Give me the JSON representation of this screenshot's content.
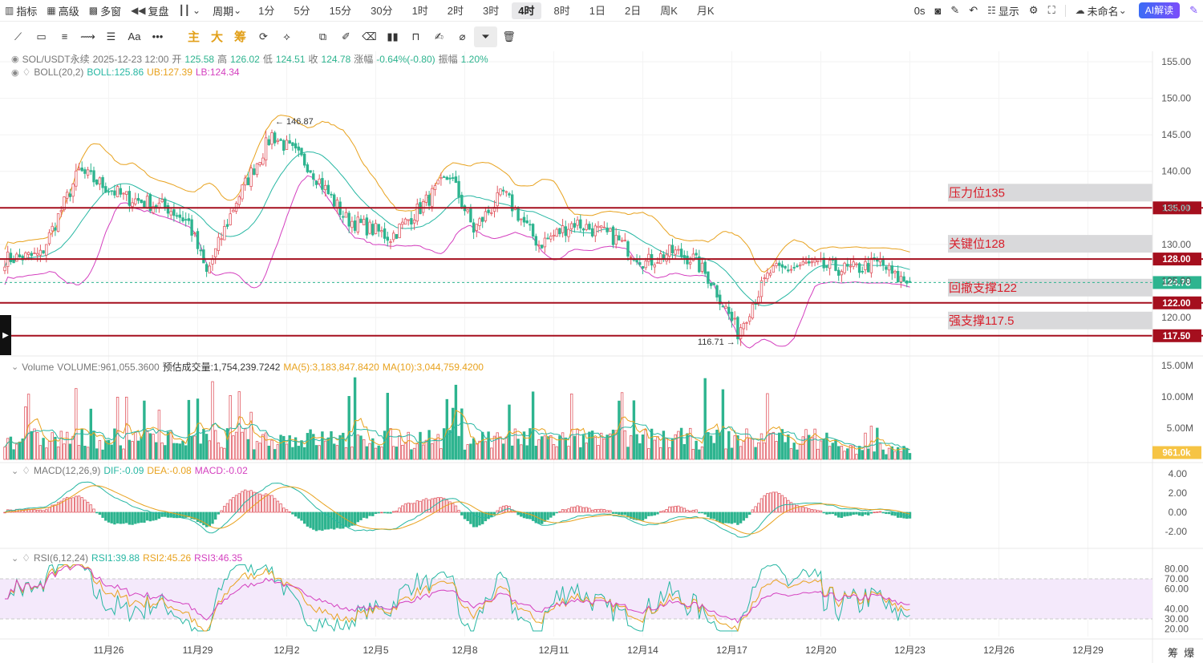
{
  "toolbar": {
    "indicators": "指标",
    "advanced": "高级",
    "multi_window": "多窗",
    "replay": "复盘",
    "period_label": "周期",
    "periods": [
      "1分",
      "5分",
      "15分",
      "30分",
      "1时",
      "2时",
      "3时",
      "4时",
      "8时",
      "1日",
      "2日",
      "周K",
      "月K"
    ],
    "active_period": "4时",
    "countdown": "0s",
    "display": "显示",
    "unnamed": "未命名",
    "ai_button": "AI解读"
  },
  "drawing_tools": {
    "zh_buttons": [
      "主",
      "大",
      "筹"
    ]
  },
  "main_legend": {
    "symbol": "SOL/USDT永续",
    "datetime": "2025-12-23 12:00",
    "open_label": "开",
    "open": "125.58",
    "high_label": "高",
    "high": "126.02",
    "low_label": "低",
    "low": "124.51",
    "close_label": "收",
    "close": "124.78",
    "change_label": "涨幅",
    "change": "-0.64%(-0.80)",
    "amp_label": "振幅",
    "amplitude": "1.20%"
  },
  "boll_legend": {
    "name": "BOLL(20,2)",
    "mid": "BOLL:125.86",
    "ub": "UB:127.39",
    "lb": "LB:124.34"
  },
  "volume_legend": {
    "name": "Volume",
    "volume": "VOLUME:961,055.3600",
    "estimate": "预估成交量:1,754,239.7242",
    "ma5": "MA(5):3,183,847.8420",
    "ma10": "MA(10):3,044,759.4200"
  },
  "macd_legend": {
    "name": "MACD(12,26,9)",
    "dif": "DIF:-0.09",
    "dea": "DEA:-0.08",
    "macd": "MACD:-0.02"
  },
  "rsi_legend": {
    "name": "RSI(6,12,24)",
    "rsi1": "RSI1:39.88",
    "rsi2": "RSI2:45.26",
    "rsi3": "RSI3:46.35"
  },
  "colors": {
    "up": "#e25a63",
    "down": "#2db48f",
    "level_line": "#a50f1e",
    "ma5": "#e8a21e",
    "ma10": "#27b7a3",
    "lb": "#d43fbf",
    "boll_mid": "#27b7a3",
    "boll_ub": "#e8a21e"
  },
  "chart_data": {
    "type": "candlestick",
    "symbol": "SOL/USDT永续",
    "interval": "4时",
    "x_labels": [
      "11月26",
      "11月29",
      "12月2",
      "12月5",
      "12月8",
      "12月11",
      "12月14",
      "12月17",
      "12月20",
      "12月23",
      "12月26",
      "12月29"
    ],
    "y_ticks": [
      "155.00",
      "150.00",
      "145.00",
      "140.00",
      "135.00",
      "130.00",
      "125.00",
      "120.00"
    ],
    "ylim": [
      114,
      156
    ],
    "current_price": "124.78",
    "high_marker": "146.87",
    "low_marker": "116.71",
    "levels": [
      {
        "label": "压力位135",
        "tag": "135.00",
        "value": 135.0
      },
      {
        "label": "关键位128",
        "tag": "128.00",
        "value": 128.0
      },
      {
        "label": "回撤支撑122",
        "tag": "122.00",
        "value": 122.0
      },
      {
        "label": "强支撑117.5",
        "tag": "117.50",
        "value": 117.5
      }
    ],
    "close_anchors": [
      [
        0,
        128
      ],
      [
        12,
        128.5
      ],
      [
        25,
        140
      ],
      [
        40,
        136.5
      ],
      [
        55,
        135
      ],
      [
        62,
        133
      ],
      [
        68,
        126
      ],
      [
        78,
        136
      ],
      [
        90,
        145
      ],
      [
        102,
        141
      ],
      [
        115,
        133.5
      ],
      [
        130,
        131
      ],
      [
        140,
        135
      ],
      [
        150,
        139.5
      ],
      [
        158,
        132
      ],
      [
        168,
        137
      ],
      [
        180,
        130
      ],
      [
        192,
        133
      ],
      [
        205,
        131
      ],
      [
        216,
        127.5
      ],
      [
        225,
        129
      ],
      [
        232,
        128
      ],
      [
        238,
        125
      ],
      [
        242,
        122
      ],
      [
        247,
        118
      ],
      [
        252,
        122
      ],
      [
        258,
        126.2
      ],
      [
        270,
        127.2
      ],
      [
        285,
        126.5
      ],
      [
        295,
        127.5
      ],
      [
        300,
        125.5
      ],
      [
        305,
        124.78
      ]
    ],
    "volume_ticks": [
      "15.00M",
      "10.00M",
      "5.00M"
    ],
    "volume_ylim": [
      0,
      16
    ],
    "volume_current": "961.0k",
    "macd_ticks": [
      "4.00",
      "2.00",
      "0.00",
      "-2.00"
    ],
    "macd_ylim": [
      -3,
      5
    ],
    "rsi_ticks": [
      "80.00",
      "70.00",
      "60.00",
      "40.00",
      "30.00",
      "20.00"
    ],
    "rsi_ylim": [
      15,
      85
    ],
    "rsi_band": [
      30,
      70
    ]
  },
  "corner": {
    "a": "筹",
    "b": "爆"
  }
}
